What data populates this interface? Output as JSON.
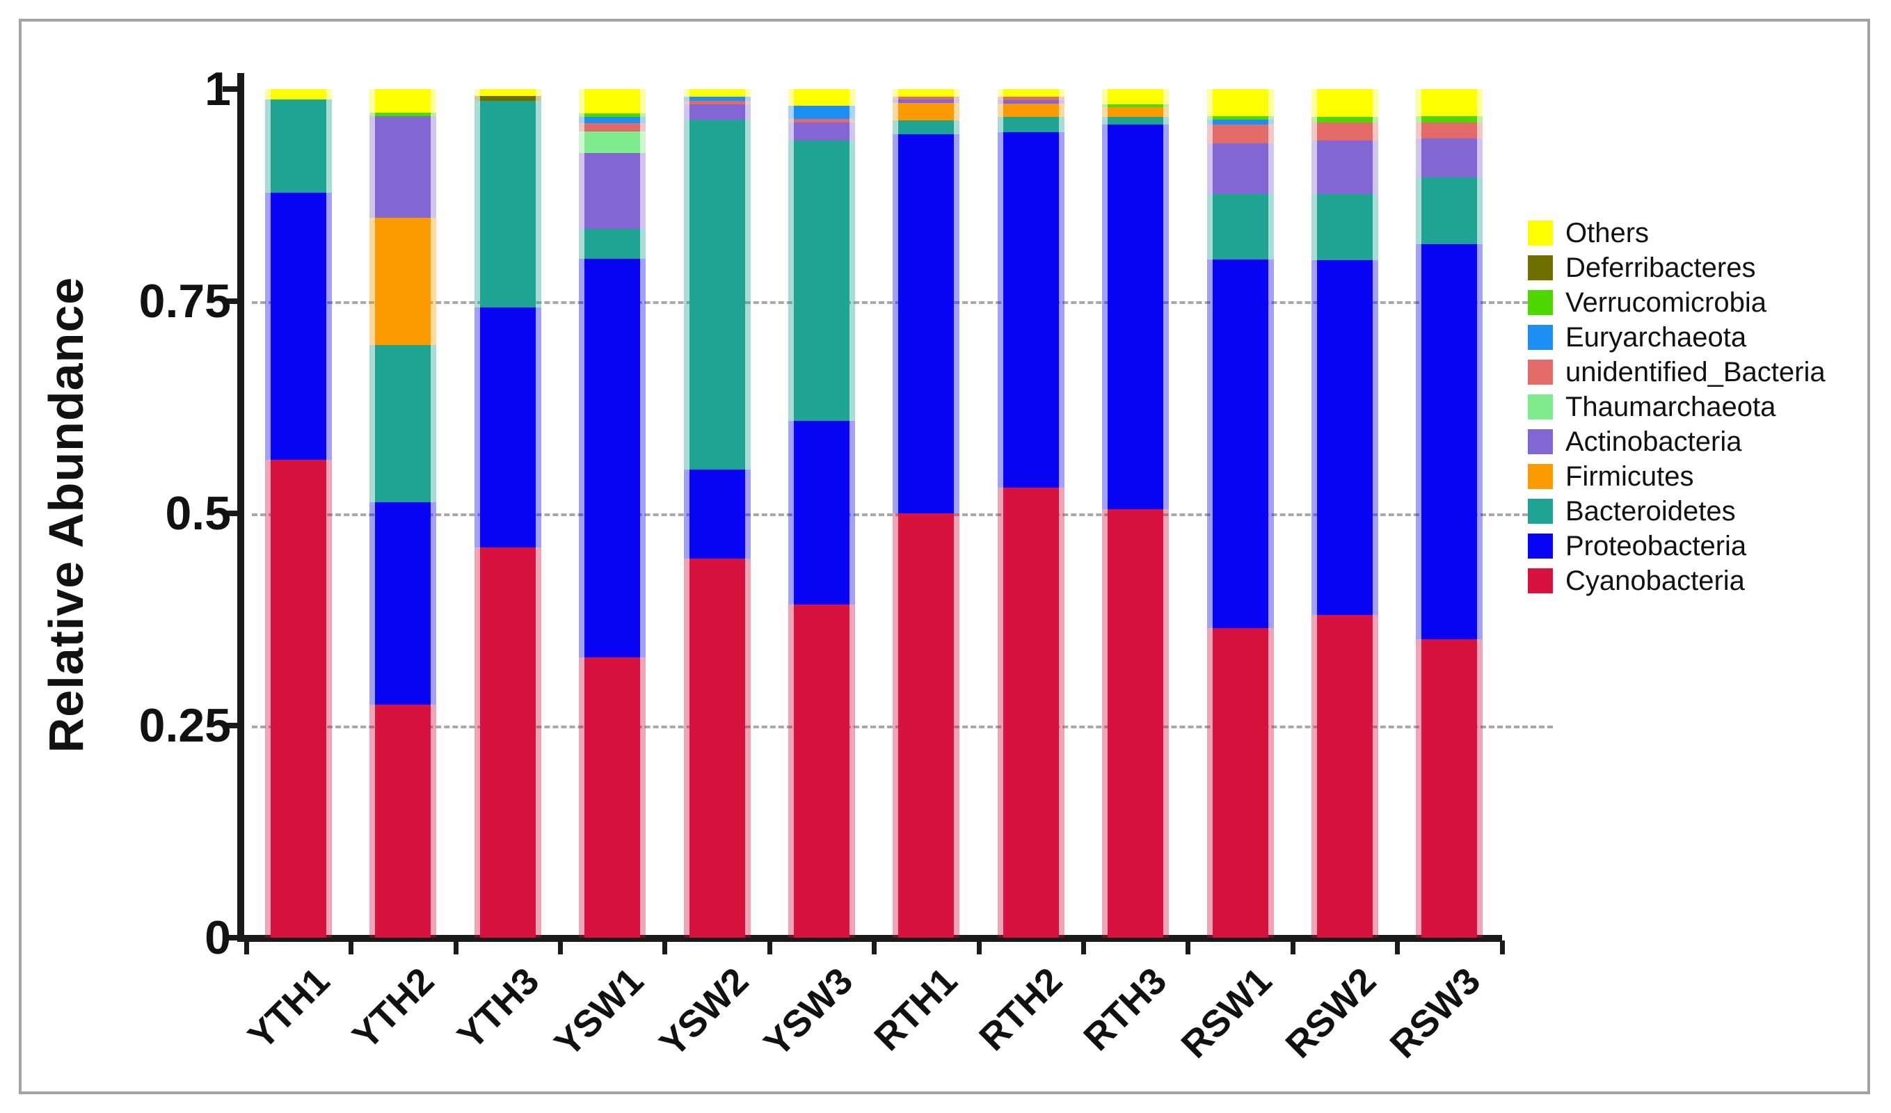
{
  "chart_data": {
    "type": "bar",
    "stacked": true,
    "title": "",
    "ylabel": "Relative Abundance",
    "xlabel": "",
    "ylim": [
      0,
      1
    ],
    "yticks": [
      {
        "value": 1,
        "label": "1"
      },
      {
        "value": 0.75,
        "label": "0.75"
      },
      {
        "value": 0.5,
        "label": "0.5"
      },
      {
        "value": 0.25,
        "label": "0.25"
      },
      {
        "value": 0,
        "label": "0"
      }
    ],
    "gridlines": {
      "values": [
        0.75,
        0.5,
        0.25
      ],
      "style": "dashed",
      "color": "#a9a9a9"
    },
    "categories": [
      "YTH1",
      "YTH2",
      "YTH3",
      "YSW1",
      "YSW2",
      "YSW3",
      "RTH1",
      "RTH2",
      "RTH3",
      "RSW1",
      "RSW2",
      "RSW3"
    ],
    "legend_position": "right",
    "legend_top_to_bottom": [
      "Others",
      "Deferribacteres",
      "Verrucomicrobia",
      "Euryarchaeota",
      "unidentified_Bacteria",
      "Thaumarchaeota",
      "Actinobacteria",
      "Firmicutes",
      "Bacteroidetes",
      "Proteobacteria",
      "Cyanobacteria"
    ],
    "series": [
      {
        "name": "Cyanobacteria",
        "color": "#D8123F",
        "values": [
          0.563,
          0.275,
          0.46,
          0.33,
          0.447,
          0.393,
          0.5,
          0.53,
          0.505,
          0.365,
          0.38,
          0.352
        ]
      },
      {
        "name": "Proteobacteria",
        "color": "#0904F6",
        "values": [
          0.315,
          0.238,
          0.283,
          0.47,
          0.105,
          0.216,
          0.447,
          0.419,
          0.453,
          0.434,
          0.418,
          0.465
        ]
      },
      {
        "name": "Bacteroidetes",
        "color": "#1FA392",
        "values": [
          0.11,
          0.185,
          0.243,
          0.035,
          0.412,
          0.33,
          0.016,
          0.018,
          0.009,
          0.077,
          0.078,
          0.079
        ]
      },
      {
        "name": "Firmicutes",
        "color": "#FB9B00",
        "values": [
          0,
          0.15,
          0,
          0,
          0,
          0,
          0.021,
          0.016,
          0.012,
          0,
          0,
          0
        ]
      },
      {
        "name": "Actinobacteria",
        "color": "#8266D4",
        "values": [
          0,
          0.12,
          0,
          0.09,
          0.018,
          0.022,
          0.004,
          0.004,
          0,
          0.06,
          0.063,
          0.046
        ]
      },
      {
        "name": "Thaumarchaeota",
        "color": "#7EEB8D",
        "values": [
          0,
          0,
          0,
          0.025,
          0,
          0,
          0,
          0,
          0,
          0,
          0,
          0
        ]
      },
      {
        "name": "unidentified_Bacteria",
        "color": "#E26A67",
        "values": [
          0,
          0,
          0,
          0.01,
          0.004,
          0.004,
          0.003,
          0.004,
          0,
          0.022,
          0.022,
          0.019
        ]
      },
      {
        "name": "Euryarchaeota",
        "color": "#1E8FF2",
        "values": [
          0,
          0,
          0,
          0.007,
          0.005,
          0.015,
          0,
          0,
          0,
          0.006,
          0,
          0
        ]
      },
      {
        "name": "Verrucomicrobia",
        "color": "#4ED800",
        "values": [
          0,
          0.004,
          0,
          0.004,
          0,
          0,
          0,
          0,
          0.003,
          0.004,
          0.006,
          0.007
        ]
      },
      {
        "name": "Deferribacteres",
        "color": "#6F7000",
        "values": [
          0,
          0,
          0.006,
          0,
          0,
          0,
          0,
          0,
          0,
          0,
          0,
          0
        ]
      },
      {
        "name": "Others",
        "color": "#FDFF00",
        "values": [
          0.012,
          0.028,
          0.008,
          0.029,
          0.009,
          0.02,
          0.009,
          0.009,
          0.018,
          0.032,
          0.033,
          0.032
        ]
      }
    ]
  }
}
